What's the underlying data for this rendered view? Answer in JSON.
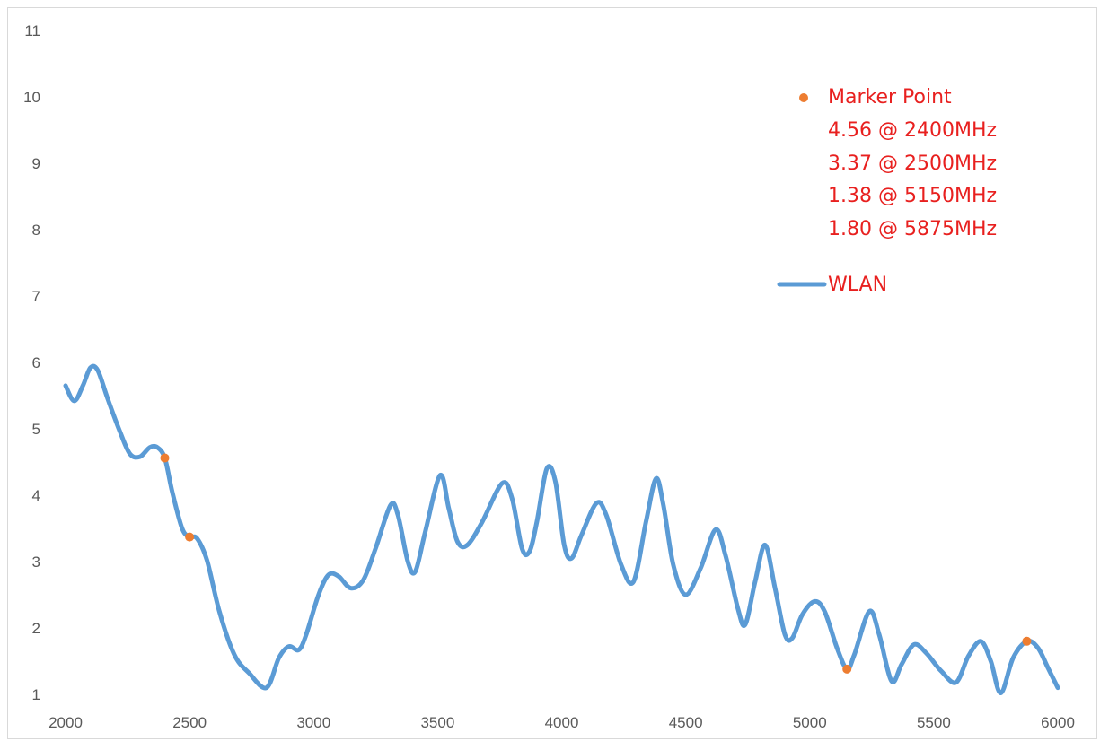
{
  "chart_data": {
    "type": "line",
    "xlim": [
      2000,
      6000
    ],
    "ylim": [
      1,
      11
    ],
    "x_ticks": [
      "2000",
      "2500",
      "3000",
      "3500",
      "4000",
      "4500",
      "5000",
      "5500",
      "6000"
    ],
    "y_ticks": [
      "1",
      "2",
      "3",
      "4",
      "5",
      "6",
      "7",
      "8",
      "9",
      "10",
      "11"
    ],
    "grid": false,
    "legend_position": "top-right",
    "series": [
      {
        "name": "WLAN",
        "color": "#5b9bd5",
        "points": [
          [
            2000,
            5.65
          ],
          [
            2035,
            5.42
          ],
          [
            2070,
            5.65
          ],
          [
            2100,
            5.92
          ],
          [
            2130,
            5.88
          ],
          [
            2170,
            5.45
          ],
          [
            2220,
            4.95
          ],
          [
            2260,
            4.62
          ],
          [
            2300,
            4.58
          ],
          [
            2340,
            4.72
          ],
          [
            2370,
            4.72
          ],
          [
            2400,
            4.56
          ],
          [
            2430,
            4.05
          ],
          [
            2470,
            3.5
          ],
          [
            2500,
            3.37
          ],
          [
            2530,
            3.35
          ],
          [
            2570,
            3.02
          ],
          [
            2620,
            2.25
          ],
          [
            2680,
            1.6
          ],
          [
            2740,
            1.32
          ],
          [
            2810,
            1.1
          ],
          [
            2860,
            1.55
          ],
          [
            2900,
            1.72
          ],
          [
            2940,
            1.67
          ],
          [
            2970,
            1.9
          ],
          [
            3020,
            2.5
          ],
          [
            3060,
            2.8
          ],
          [
            3100,
            2.78
          ],
          [
            3150,
            2.6
          ],
          [
            3200,
            2.72
          ],
          [
            3250,
            3.2
          ],
          [
            3310,
            3.85
          ],
          [
            3340,
            3.7
          ],
          [
            3380,
            3.0
          ],
          [
            3410,
            2.85
          ],
          [
            3450,
            3.45
          ],
          [
            3510,
            4.3
          ],
          [
            3545,
            3.8
          ],
          [
            3580,
            3.3
          ],
          [
            3620,
            3.25
          ],
          [
            3680,
            3.6
          ],
          [
            3760,
            4.18
          ],
          [
            3800,
            3.95
          ],
          [
            3840,
            3.2
          ],
          [
            3870,
            3.15
          ],
          [
            3900,
            3.6
          ],
          [
            3940,
            4.4
          ],
          [
            3975,
            4.2
          ],
          [
            4010,
            3.25
          ],
          [
            4040,
            3.05
          ],
          [
            4080,
            3.4
          ],
          [
            4140,
            3.88
          ],
          [
            4180,
            3.7
          ],
          [
            4240,
            2.95
          ],
          [
            4290,
            2.7
          ],
          [
            4340,
            3.6
          ],
          [
            4380,
            4.25
          ],
          [
            4410,
            3.85
          ],
          [
            4450,
            2.95
          ],
          [
            4500,
            2.5
          ],
          [
            4560,
            2.9
          ],
          [
            4620,
            3.48
          ],
          [
            4660,
            3.1
          ],
          [
            4710,
            2.3
          ],
          [
            4740,
            2.05
          ],
          [
            4780,
            2.7
          ],
          [
            4820,
            3.25
          ],
          [
            4860,
            2.6
          ],
          [
            4900,
            1.9
          ],
          [
            4930,
            1.85
          ],
          [
            4970,
            2.2
          ],
          [
            5020,
            2.4
          ],
          [
            5060,
            2.25
          ],
          [
            5110,
            1.7
          ],
          [
            5150,
            1.38
          ],
          [
            5180,
            1.6
          ],
          [
            5240,
            2.25
          ],
          [
            5280,
            1.9
          ],
          [
            5330,
            1.2
          ],
          [
            5370,
            1.45
          ],
          [
            5420,
            1.75
          ],
          [
            5470,
            1.62
          ],
          [
            5530,
            1.35
          ],
          [
            5590,
            1.18
          ],
          [
            5640,
            1.58
          ],
          [
            5690,
            1.8
          ],
          [
            5730,
            1.5
          ],
          [
            5770,
            1.02
          ],
          [
            5820,
            1.55
          ],
          [
            5875,
            1.8
          ],
          [
            5920,
            1.7
          ],
          [
            5960,
            1.4
          ],
          [
            6000,
            1.1
          ]
        ]
      }
    ],
    "markers": {
      "name": "Marker Point",
      "color": "#ed7d31",
      "points": [
        [
          2400,
          4.56
        ],
        [
          2500,
          3.37
        ],
        [
          5150,
          1.38
        ],
        [
          5875,
          1.8
        ]
      ]
    },
    "legend": {
      "marker_label": "Marker Point",
      "marker_lines": [
        "4.56 @ 2400MHz",
        "3.37 @ 2500MHz",
        "1.38 @ 5150MHz",
        "1.80 @ 5875MHz"
      ],
      "line_label": "WLAN",
      "text_color": "#e8201f"
    }
  }
}
